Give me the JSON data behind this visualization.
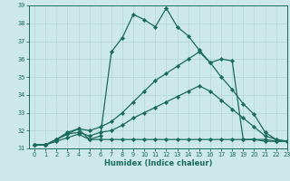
{
  "xlabel": "Humidex (Indice chaleur)",
  "ylabel": "",
  "xlim": [
    -0.5,
    23
  ],
  "ylim": [
    31,
    39
  ],
  "yticks": [
    31,
    32,
    33,
    34,
    35,
    36,
    37,
    38,
    39
  ],
  "xticks": [
    0,
    1,
    2,
    3,
    4,
    5,
    6,
    7,
    8,
    9,
    10,
    11,
    12,
    13,
    14,
    15,
    16,
    17,
    18,
    19,
    20,
    21,
    22,
    23
  ],
  "bg_color": "#cce8e8",
  "grid_color": "#b0d4d4",
  "line_color": "#1a6b5a",
  "lines": [
    {
      "x": [
        0,
        1,
        2,
        3,
        4,
        5,
        6,
        7,
        8,
        9,
        10,
        11,
        12,
        13,
        14,
        15,
        16,
        17,
        18,
        19,
        20,
        21,
        22,
        23
      ],
      "y": [
        31.2,
        31.2,
        31.5,
        31.8,
        32.1,
        31.5,
        31.7,
        36.4,
        37.2,
        38.5,
        38.2,
        37.8,
        38.85,
        37.8,
        37.3,
        36.5,
        35.8,
        36.0,
        35.9,
        31.5,
        31.5,
        31.4,
        31.4,
        31.4
      ]
    },
    {
      "x": [
        0,
        1,
        2,
        3,
        4,
        5,
        6,
        7,
        8,
        9,
        10,
        11,
        12,
        13,
        14,
        15,
        16,
        17,
        18,
        19,
        20,
        21,
        22,
        23
      ],
      "y": [
        31.2,
        31.2,
        31.4,
        31.6,
        31.8,
        31.5,
        31.5,
        31.5,
        31.5,
        31.5,
        31.5,
        31.5,
        31.5,
        31.5,
        31.5,
        31.5,
        31.5,
        31.5,
        31.5,
        31.5,
        31.5,
        31.5,
        31.4,
        31.4
      ]
    },
    {
      "x": [
        0,
        1,
        2,
        3,
        4,
        5,
        6,
        7,
        8,
        9,
        10,
        11,
        12,
        13,
        14,
        15,
        16,
        17,
        18,
        19,
        20,
        21,
        22,
        23
      ],
      "y": [
        31.2,
        31.2,
        31.5,
        31.8,
        31.9,
        31.7,
        31.9,
        32.0,
        32.3,
        32.7,
        33.0,
        33.3,
        33.6,
        33.9,
        34.2,
        34.5,
        34.2,
        33.7,
        33.2,
        32.7,
        32.2,
        31.7,
        31.5,
        31.4
      ]
    },
    {
      "x": [
        0,
        1,
        2,
        3,
        4,
        5,
        6,
        7,
        8,
        9,
        10,
        11,
        12,
        13,
        14,
        15,
        16,
        17,
        18,
        19,
        20,
        21,
        22,
        23
      ],
      "y": [
        31.2,
        31.2,
        31.5,
        31.9,
        32.1,
        32.0,
        32.2,
        32.5,
        33.0,
        33.6,
        34.2,
        34.8,
        35.2,
        35.6,
        36.0,
        36.4,
        35.8,
        35.0,
        34.3,
        33.5,
        32.9,
        31.9,
        31.5,
        31.4
      ]
    }
  ]
}
